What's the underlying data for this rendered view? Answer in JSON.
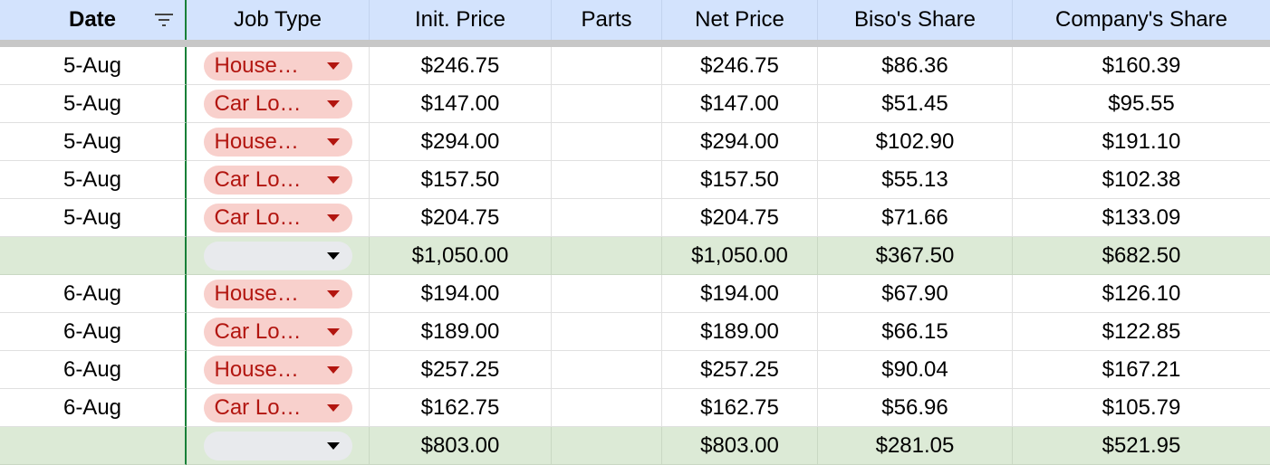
{
  "header": {
    "columns": [
      "Date",
      "Job Type",
      "Init. Price",
      "Parts",
      "Net Price",
      "Biso's Share",
      "Company's Share"
    ]
  },
  "rows": [
    {
      "type": "data",
      "date": "5-Aug",
      "job": "House…",
      "init": "$246.75",
      "parts": "",
      "net": "$246.75",
      "biso": "$86.36",
      "company": "$160.39"
    },
    {
      "type": "data",
      "date": "5-Aug",
      "job": "Car Lo…",
      "init": "$147.00",
      "parts": "",
      "net": "$147.00",
      "biso": "$51.45",
      "company": "$95.55"
    },
    {
      "type": "data",
      "date": "5-Aug",
      "job": "House…",
      "init": "$294.00",
      "parts": "",
      "net": "$294.00",
      "biso": "$102.90",
      "company": "$191.10"
    },
    {
      "type": "data",
      "date": "5-Aug",
      "job": "Car Lo…",
      "init": "$157.50",
      "parts": "",
      "net": "$157.50",
      "biso": "$55.13",
      "company": "$102.38"
    },
    {
      "type": "data",
      "date": "5-Aug",
      "job": "Car Lo…",
      "init": "$204.75",
      "parts": "",
      "net": "$204.75",
      "biso": "$71.66",
      "company": "$133.09"
    },
    {
      "type": "sum",
      "date": "",
      "job": "",
      "init": "$1,050.00",
      "parts": "",
      "net": "$1,050.00",
      "biso": "$367.50",
      "company": "$682.50"
    },
    {
      "type": "data",
      "date": "6-Aug",
      "job": "House…",
      "init": "$194.00",
      "parts": "",
      "net": "$194.00",
      "biso": "$67.90",
      "company": "$126.10"
    },
    {
      "type": "data",
      "date": "6-Aug",
      "job": "Car Lo…",
      "init": "$189.00",
      "parts": "",
      "net": "$189.00",
      "biso": "$66.15",
      "company": "$122.85"
    },
    {
      "type": "data",
      "date": "6-Aug",
      "job": "House…",
      "init": "$257.25",
      "parts": "",
      "net": "$257.25",
      "biso": "$90.04",
      "company": "$167.21"
    },
    {
      "type": "data",
      "date": "6-Aug",
      "job": "Car Lo…",
      "init": "$162.75",
      "parts": "",
      "net": "$162.75",
      "biso": "$56.96",
      "company": "$105.79"
    },
    {
      "type": "sum",
      "date": "",
      "job": "",
      "init": "$803.00",
      "parts": "",
      "net": "$803.00",
      "biso": "$281.05",
      "company": "$521.95"
    }
  ],
  "icons": {
    "filter": "filter-icon",
    "dropdown": "dropdown-arrow-icon"
  },
  "colors": {
    "header_bg": "#d3e3fd",
    "sum_bg": "#dcead6",
    "chip_bg": "#f8d0cc",
    "chip_text": "#b2150f",
    "chip_empty_bg": "#e8eaed",
    "freeze_border": "#188038"
  }
}
